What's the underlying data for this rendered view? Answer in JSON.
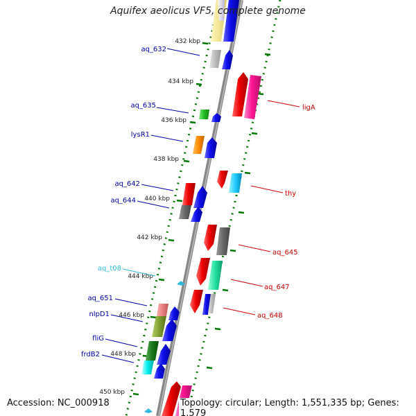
{
  "title": "Aquifex aeolicus VF5, complete genome",
  "footer": {
    "accession_text": "Accession: NC_000918",
    "topology_text": "Topology: circular; Length: 1,551,335 bp; Genes: 1,579"
  },
  "colors": {
    "label_blue": "#0000aa",
    "label_red": "#cc0000",
    "label_cyan": "#33bbdd",
    "tick_green": "#007700"
  },
  "scale_labels": [
    "432 kbp",
    "434 kbp",
    "436 kbp",
    "438 kbp",
    "440 kbp",
    "442 kbp",
    "444 kbp",
    "446 kbp",
    "448 kbp",
    "450 kbp"
  ],
  "gene_labels": [
    {
      "text": "aq_632",
      "color": "#0000aa"
    },
    {
      "text": "aq_635",
      "color": "#0000aa"
    },
    {
      "text": "lysR1",
      "color": "#0000aa"
    },
    {
      "text": "aq_642",
      "color": "#0000aa"
    },
    {
      "text": "aq_644",
      "color": "#0000aa"
    },
    {
      "text": "aq_t08",
      "color": "#33bbdd"
    },
    {
      "text": "aq_651",
      "color": "#0000aa"
    },
    {
      "text": "nlpD1",
      "color": "#0000aa"
    },
    {
      "text": "fliG",
      "color": "#0000aa"
    },
    {
      "text": "frdB2",
      "color": "#0000aa"
    },
    {
      "text": "ligA",
      "color": "#cc0000"
    },
    {
      "text": "thy",
      "color": "#cc0000"
    },
    {
      "text": "aq_645",
      "color": "#cc0000"
    },
    {
      "text": "aq_647",
      "color": "#cc0000"
    },
    {
      "text": "aq_648",
      "color": "#cc0000"
    }
  ]
}
